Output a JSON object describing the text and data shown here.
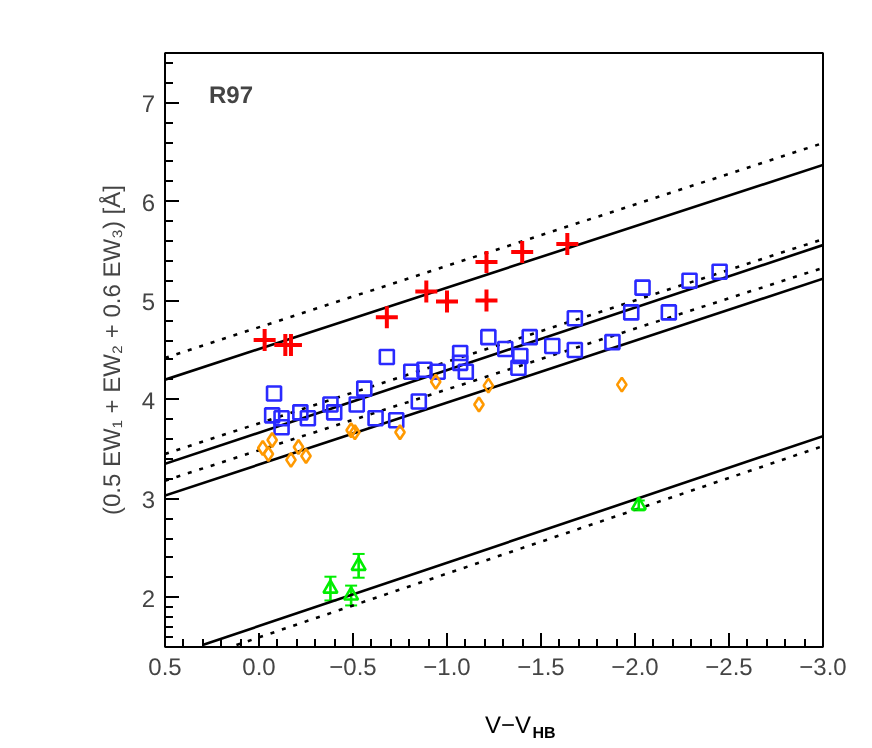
{
  "chart_data": {
    "type": "scatter",
    "xlabel": "V−V$_{HB}$",
    "ylabel": "(0.5 EW₁ + EW₂ + 0.6 EW₃) [Å]",
    "annotations": [
      "R97"
    ],
    "xlim": [
      0.5,
      -3.0
    ],
    "xticks": [
      {
        "value": 0.5,
        "label": "0.5"
      },
      {
        "value": 0,
        "label": "0.0"
      },
      {
        "value": -0.5,
        "label": "−0.5"
      },
      {
        "value": -1.0,
        "label": "−1.0"
      },
      {
        "value": -1.5,
        "label": "−1.5"
      },
      {
        "value": -2.0,
        "label": "−2.0"
      },
      {
        "value": -2.5,
        "label": "−2.5"
      },
      {
        "value": -3.0,
        "label": "−3.0"
      }
    ],
    "ylim": [
      1.5,
      7.5
    ],
    "yticks": [
      2,
      3,
      4,
      5,
      6,
      7
    ],
    "grid": false,
    "series": [
      {
        "type": "line",
        "color": "#000000",
        "line_style": "dotted",
        "marker": "none",
        "x": [
          0.5,
          -3.0
        ],
        "values": [
          4.42,
          6.59
        ]
      },
      {
        "type": "line",
        "color": "#000000",
        "line_style": "solid",
        "marker": "none",
        "x": [
          0.5,
          -3.0
        ],
        "values": [
          4.2,
          6.37
        ]
      },
      {
        "type": "line",
        "color": "#000000",
        "line_style": "dotted",
        "marker": "none",
        "x": [
          0.5,
          -3.0
        ],
        "values": [
          3.45,
          5.62
        ]
      },
      {
        "type": "line",
        "color": "#000000",
        "line_style": "solid",
        "marker": "none",
        "x": [
          0.5,
          -3.0
        ],
        "values": [
          3.35,
          5.56
        ]
      },
      {
        "type": "line",
        "color": "#000000",
        "line_style": "dotted",
        "marker": "none",
        "x": [
          0.5,
          -3.0
        ],
        "values": [
          3.18,
          5.33
        ]
      },
      {
        "type": "line",
        "color": "#000000",
        "line_style": "solid",
        "marker": "none",
        "x": [
          0.5,
          -3.0
        ],
        "values": [
          3.03,
          5.22
        ]
      },
      {
        "type": "line",
        "color": "#000000",
        "line_style": "solid",
        "marker": "none",
        "x": [
          0.3,
          -3.0
        ],
        "values": [
          1.52,
          3.63
        ]
      },
      {
        "type": "line",
        "color": "#000000",
        "line_style": "dotted",
        "marker": "none",
        "x": [
          0.12,
          -3.0
        ],
        "values": [
          1.52,
          3.53
        ]
      },
      {
        "color": "#ff0000",
        "marker": "cross",
        "x": [
          -0.03,
          -0.14,
          -0.17,
          -0.68,
          -0.89,
          -1.0,
          -1.21,
          -1.21,
          -1.4,
          -1.64
        ],
        "values": [
          4.6,
          4.55,
          4.55,
          4.83,
          5.09,
          4.99,
          5.39,
          5.0,
          5.49,
          5.57
        ]
      },
      {
        "color": "#2a2aff",
        "marker": "square",
        "x": [
          -0.68,
          -1.22,
          -1.31,
          -1.39,
          -1.44,
          -1.56,
          -1.68,
          -1.68,
          -1.88,
          -1.98,
          -2.04,
          -2.18,
          -2.29,
          -2.45,
          -0.08,
          -0.07,
          -0.12,
          -0.22,
          -0.26,
          -0.38,
          -0.4,
          -0.52,
          -0.56,
          -0.62,
          -0.73,
          -0.85,
          -0.81,
          -0.88,
          -0.95,
          -1.07,
          -1.07,
          -1.1,
          -1.38,
          -0.12
        ],
        "values": [
          4.43,
          4.63,
          4.51,
          4.44,
          4.63,
          4.54,
          4.82,
          4.5,
          4.58,
          4.88,
          5.13,
          4.88,
          5.2,
          5.29,
          4.06,
          3.84,
          3.81,
          3.87,
          3.81,
          3.95,
          3.87,
          3.95,
          4.11,
          3.81,
          3.79,
          3.98,
          4.28,
          4.3,
          4.28,
          4.47,
          4.37,
          4.28,
          4.32,
          3.72
        ]
      },
      {
        "color": "#ff9900",
        "marker": "diamond",
        "x": [
          -0.02,
          -0.05,
          -0.07,
          -0.17,
          -0.21,
          -0.25,
          -0.49,
          -0.51,
          -0.75,
          -0.94,
          -1.17,
          -1.22,
          -1.93
        ],
        "values": [
          3.51,
          3.45,
          3.59,
          3.39,
          3.52,
          3.43,
          3.69,
          3.67,
          3.67,
          4.18,
          3.95,
          4.14,
          4.15
        ]
      },
      {
        "color": "#00ee00",
        "marker": "triangle",
        "x": [
          -0.38,
          -0.49,
          -0.53,
          -2.02
        ],
        "values": [
          2.09,
          2.02,
          2.32,
          2.93
        ],
        "errors": [
          0.12,
          0.1,
          0.12,
          0.05
        ]
      }
    ]
  }
}
